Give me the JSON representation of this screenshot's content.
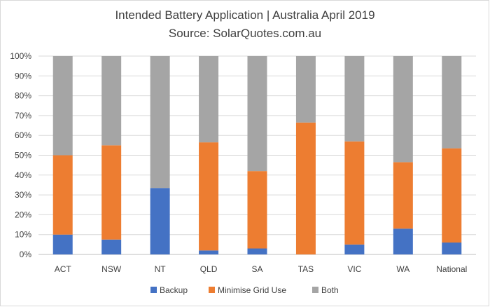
{
  "chart_data": {
    "type": "bar",
    "stacked": "percent",
    "title": "Intended Battery Application | Australia April 2019",
    "subtitle": "Source: SolarQuotes.com.au",
    "categories": [
      "ACT",
      "NSW",
      "NT",
      "QLD",
      "SA",
      "TAS",
      "VIC",
      "WA",
      "National"
    ],
    "series": [
      {
        "name": "Backup",
        "color": "#4472c4",
        "values": [
          10,
          7.5,
          33.5,
          2,
          3,
          0,
          5,
          13,
          6
        ]
      },
      {
        "name": "Minimise Grid Use",
        "color": "#ed7d31",
        "values": [
          40,
          47.5,
          0,
          54.5,
          39,
          66.5,
          52,
          33.5,
          47.5
        ]
      },
      {
        "name": "Both",
        "color": "#a5a5a5",
        "values": [
          50,
          45,
          66.5,
          43.5,
          58,
          33.5,
          43,
          53.5,
          46.5
        ]
      }
    ],
    "yticks": [
      "0%",
      "10%",
      "20%",
      "30%",
      "40%",
      "50%",
      "60%",
      "70%",
      "80%",
      "90%",
      "100%"
    ],
    "ylim": [
      0,
      100
    ],
    "grid": true,
    "legend": "bottom"
  }
}
